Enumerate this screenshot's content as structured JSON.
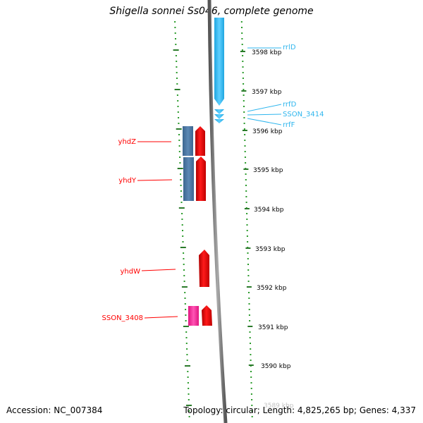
{
  "title": "Shigella sonnei Ss046, complete genome",
  "footer": {
    "accession": "Accession: NC_007384",
    "summary": "Topology: circular; Length: 4,825,265 bp; Genes: 4,337"
  },
  "colors": {
    "forward_cds": "#ff0000",
    "reverse_cds": "#4f7aa8",
    "pseudo_or_other": "#ff2aa0",
    "rrna": "#2fb6ee",
    "gc_dots": "#2a9a2a",
    "backbone": "#808080",
    "tick": "#2a7a2a"
  },
  "scale_labels": [
    "3598 kbp",
    "3597 kbp",
    "3596 kbp",
    "3595 kbp",
    "3594 kbp",
    "3593 kbp",
    "3592 kbp",
    "3591 kbp",
    "3590 kbp",
    "3589 kbp"
  ],
  "left_labels": [
    "yhdZ",
    "yhdY",
    "yhdW",
    "SSON_3408"
  ],
  "right_labels": [
    "rrlD",
    "rrfD",
    "SSON_3414",
    "rrfF"
  ]
}
